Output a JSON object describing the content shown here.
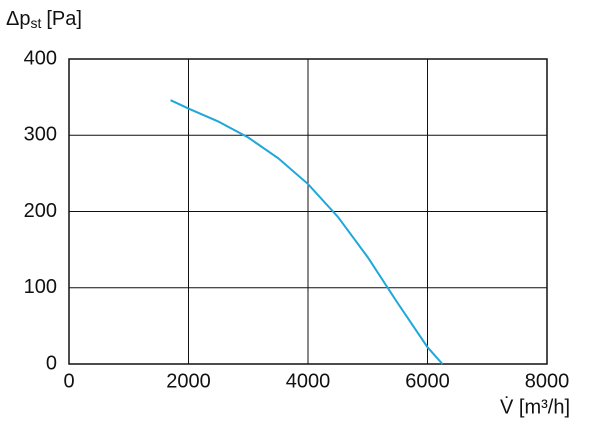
{
  "chart_data": {
    "type": "line",
    "ylabel": [
      "Δp",
      "st",
      "[Pa]"
    ],
    "xlabel": "V̇ [m³/h]",
    "x": [
      1700,
      2000,
      2500,
      3000,
      3500,
      4000,
      4500,
      5000,
      5500,
      6000,
      6250
    ],
    "values": [
      346,
      335,
      318,
      297,
      270,
      236,
      193,
      140,
      80,
      22,
      0
    ],
    "color": "#1ea7da",
    "xlim": [
      0,
      8000
    ],
    "xticks": [
      0,
      2000,
      4000,
      6000,
      8000
    ],
    "ylim": [
      0,
      400
    ],
    "yticks": [
      0,
      100,
      200,
      300,
      400
    ],
    "grid": true
  }
}
